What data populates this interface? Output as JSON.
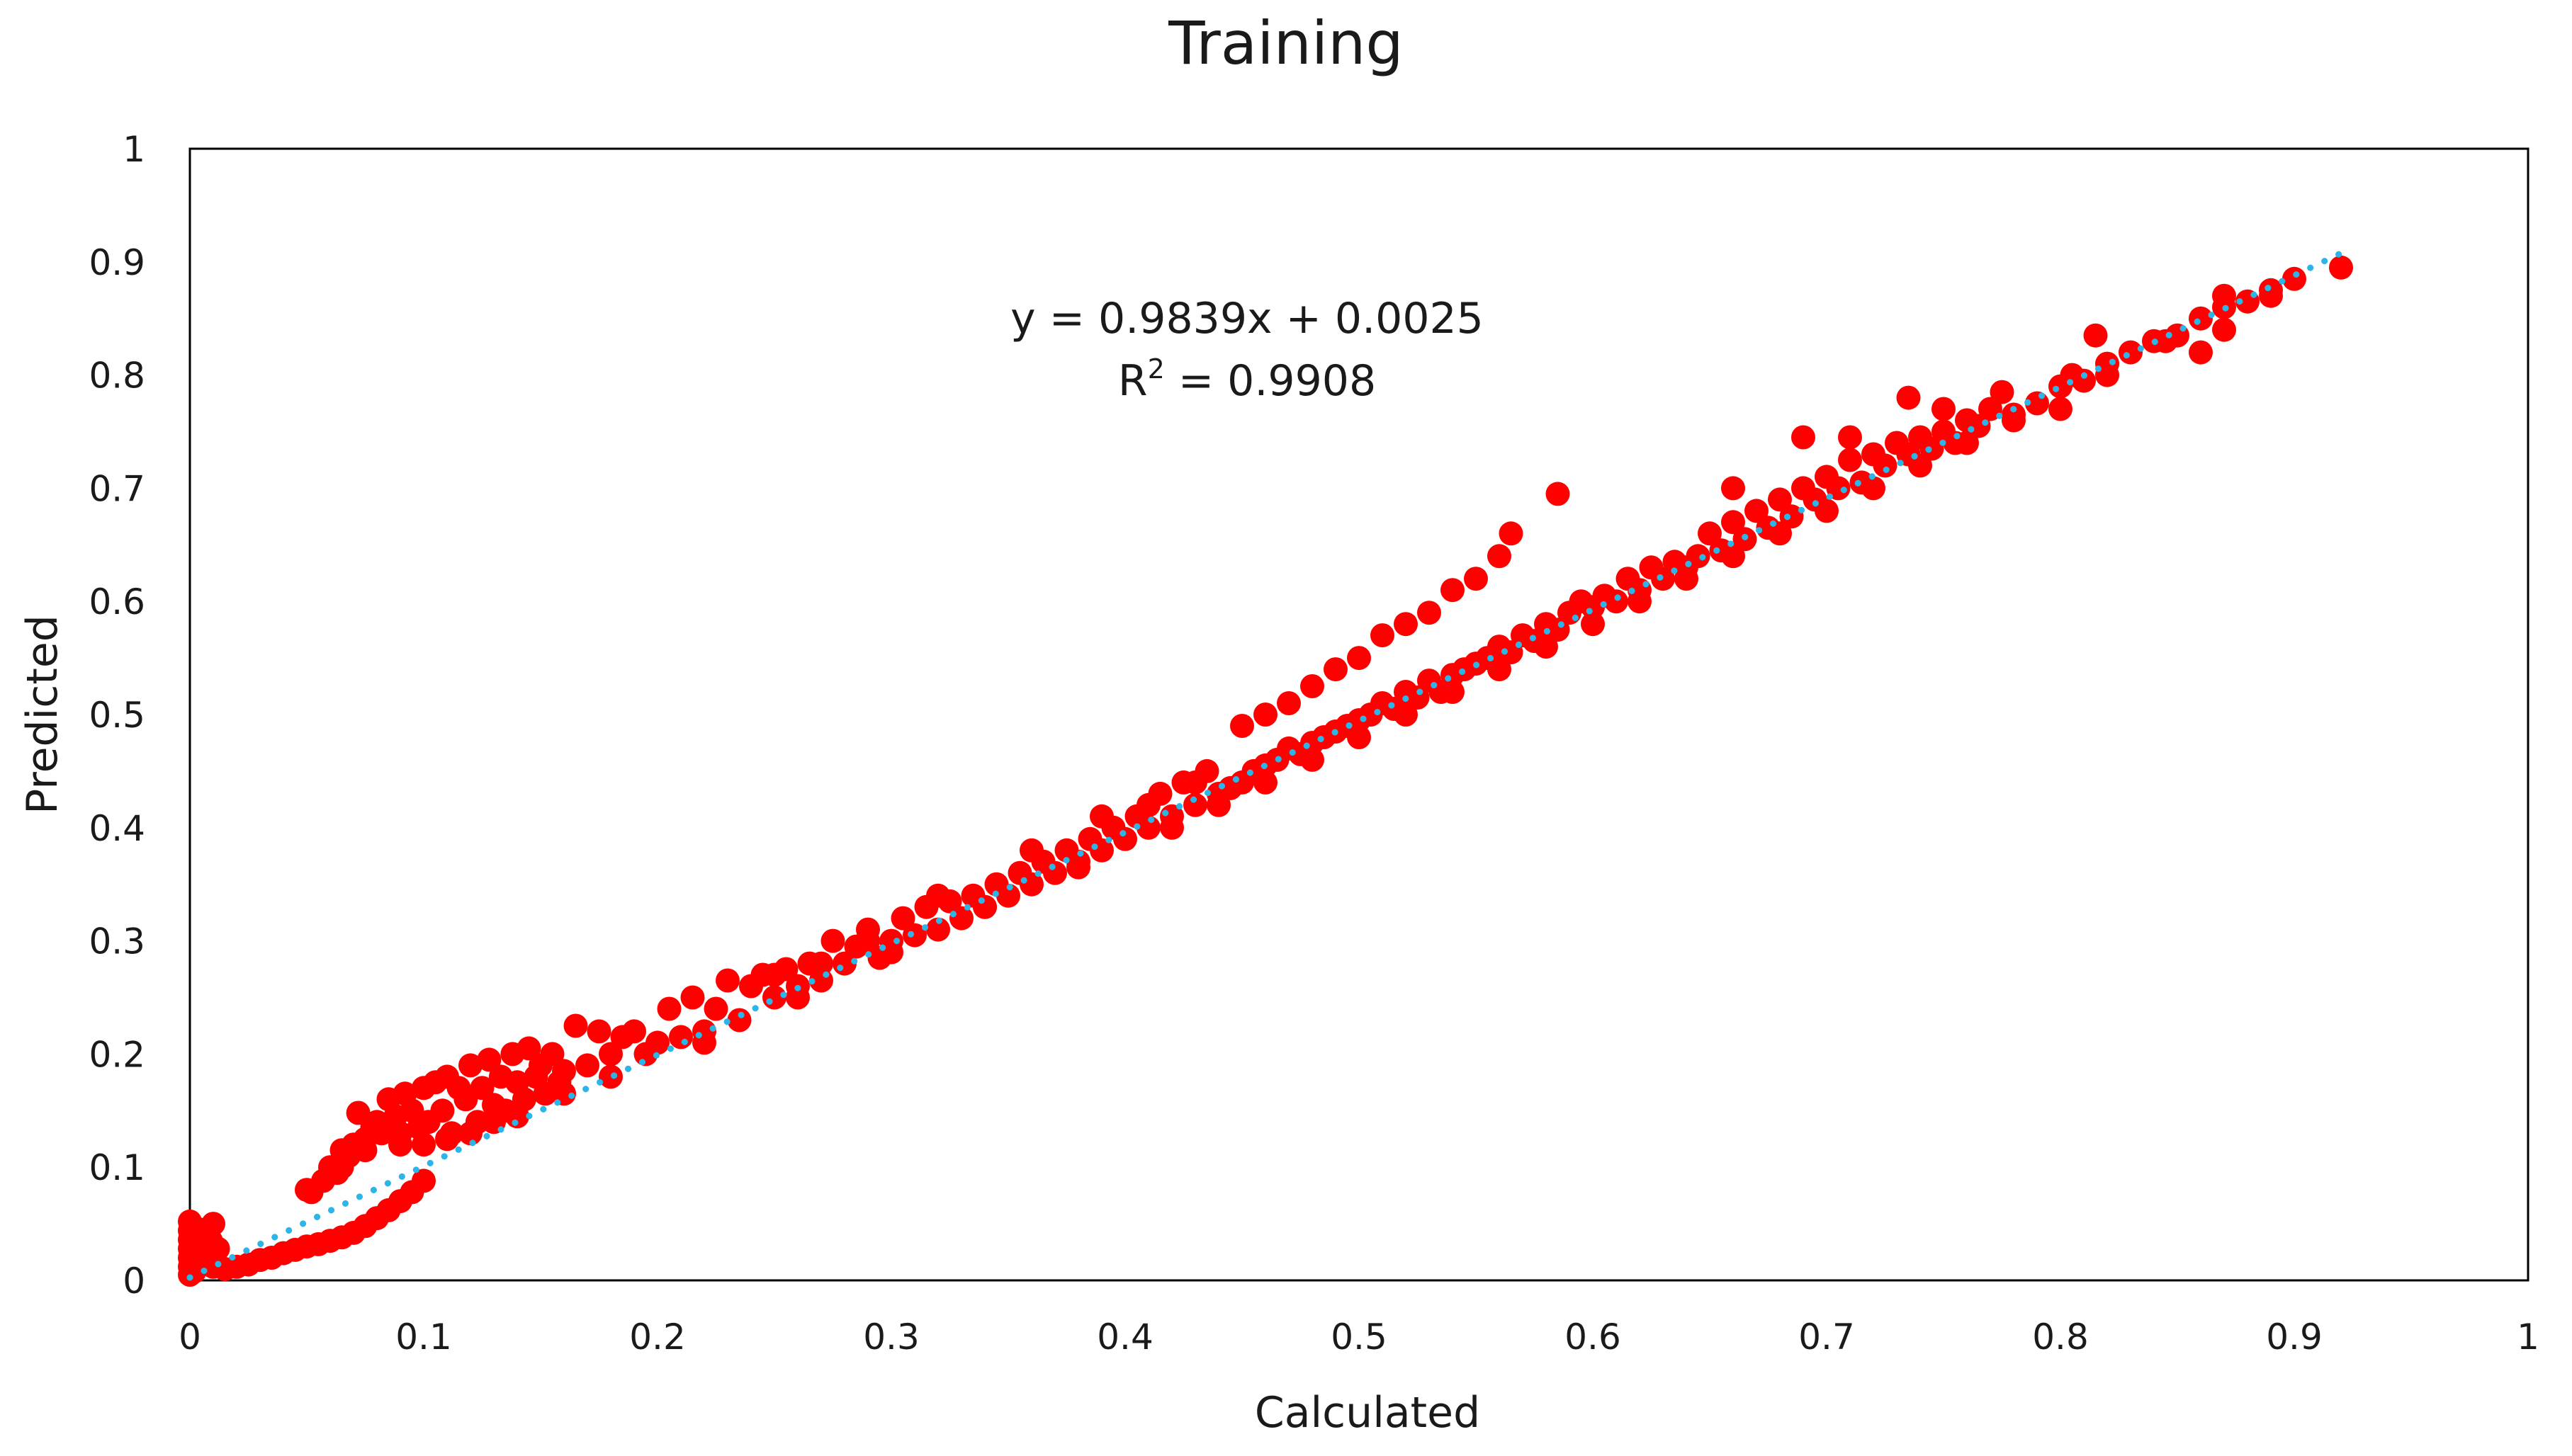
{
  "chart_data": {
    "type": "scatter",
    "title": "Training",
    "xlabel": "Calculated",
    "ylabel": "Predicted",
    "xlim": [
      0,
      1
    ],
    "ylim": [
      0,
      1
    ],
    "xticks": [
      "0",
      "0.1",
      "0.2",
      "0.3",
      "0.4",
      "0.5",
      "0.6",
      "0.7",
      "0.8",
      "0.9",
      "1"
    ],
    "yticks": [
      "0",
      "0.1",
      "0.2",
      "0.3",
      "0.4",
      "0.5",
      "0.6",
      "0.7",
      "0.8",
      "0.9",
      "1"
    ],
    "grid": false,
    "legend": "none",
    "marker_color": "#ff0000",
    "trendline": {
      "type": "linear",
      "slope": 0.9839,
      "intercept": 0.0025,
      "style": "dotted",
      "color": "#2eb5e8",
      "x_range": [
        0,
        0.92
      ]
    },
    "annotation": {
      "equation": "y = 0.9839x + 0.0025",
      "r2_label": "R",
      "r2_sup": "2",
      "r2_value": " = 0.9908"
    },
    "points": [
      [
        0,
        0.005
      ],
      [
        0,
        0.012
      ],
      [
        0,
        0.02
      ],
      [
        0,
        0.028
      ],
      [
        0,
        0.036
      ],
      [
        0,
        0.044
      ],
      [
        0,
        0.052
      ],
      [
        0.002,
        0.008
      ],
      [
        0.003,
        0.03
      ],
      [
        0.004,
        0.045
      ],
      [
        0.005,
        0.018
      ],
      [
        0.006,
        0.04
      ],
      [
        0.008,
        0.025
      ],
      [
        0.009,
        0.035
      ],
      [
        0.01,
        0.05
      ],
      [
        0.01,
        0.012
      ],
      [
        0.012,
        0.028
      ],
      [
        0.015,
        0.01
      ],
      [
        0.02,
        0.012
      ],
      [
        0.025,
        0.014
      ],
      [
        0.03,
        0.018
      ],
      [
        0.035,
        0.02
      ],
      [
        0.04,
        0.024
      ],
      [
        0.045,
        0.027
      ],
      [
        0.05,
        0.03
      ],
      [
        0.055,
        0.032
      ],
      [
        0.06,
        0.035
      ],
      [
        0.065,
        0.038
      ],
      [
        0.07,
        0.042
      ],
      [
        0.075,
        0.048
      ],
      [
        0.08,
        0.055
      ],
      [
        0.085,
        0.062
      ],
      [
        0.09,
        0.07
      ],
      [
        0.095,
        0.078
      ],
      [
        0.1,
        0.088
      ],
      [
        0.052,
        0.078
      ],
      [
        0.057,
        0.088
      ],
      [
        0.06,
        0.1
      ],
      [
        0.063,
        0.095
      ],
      [
        0.065,
        0.115
      ],
      [
        0.068,
        0.11
      ],
      [
        0.07,
        0.12
      ],
      [
        0.072,
        0.148
      ],
      [
        0.075,
        0.125
      ],
      [
        0.078,
        0.135
      ],
      [
        0.08,
        0.14
      ],
      [
        0.082,
        0.13
      ],
      [
        0.085,
        0.16
      ],
      [
        0.088,
        0.145
      ],
      [
        0.09,
        0.13
      ],
      [
        0.092,
        0.165
      ],
      [
        0.095,
        0.15
      ],
      [
        0.098,
        0.135
      ],
      [
        0.1,
        0.17
      ],
      [
        0.102,
        0.14
      ],
      [
        0.105,
        0.175
      ],
      [
        0.108,
        0.15
      ],
      [
        0.11,
        0.18
      ],
      [
        0.112,
        0.13
      ],
      [
        0.115,
        0.17
      ],
      [
        0.118,
        0.16
      ],
      [
        0.12,
        0.19
      ],
      [
        0.123,
        0.14
      ],
      [
        0.125,
        0.17
      ],
      [
        0.128,
        0.195
      ],
      [
        0.13,
        0.155
      ],
      [
        0.133,
        0.18
      ],
      [
        0.135,
        0.15
      ],
      [
        0.138,
        0.2
      ],
      [
        0.14,
        0.175
      ],
      [
        0.143,
        0.16
      ],
      [
        0.145,
        0.205
      ],
      [
        0.148,
        0.18
      ],
      [
        0.15,
        0.19
      ],
      [
        0.152,
        0.165
      ],
      [
        0.155,
        0.2
      ],
      [
        0.158,
        0.175
      ],
      [
        0.16,
        0.185
      ],
      [
        0.165,
        0.225
      ],
      [
        0.17,
        0.19
      ],
      [
        0.175,
        0.22
      ],
      [
        0.18,
        0.2
      ],
      [
        0.185,
        0.215
      ],
      [
        0.19,
        0.22
      ],
      [
        0.195,
        0.2
      ],
      [
        0.2,
        0.21
      ],
      [
        0.205,
        0.24
      ],
      [
        0.21,
        0.215
      ],
      [
        0.215,
        0.25
      ],
      [
        0.22,
        0.22
      ],
      [
        0.225,
        0.24
      ],
      [
        0.23,
        0.265
      ],
      [
        0.235,
        0.23
      ],
      [
        0.24,
        0.26
      ],
      [
        0.245,
        0.27
      ],
      [
        0.25,
        0.25
      ],
      [
        0.255,
        0.275
      ],
      [
        0.26,
        0.26
      ],
      [
        0.265,
        0.28
      ],
      [
        0.27,
        0.265
      ],
      [
        0.275,
        0.3
      ],
      [
        0.28,
        0.28
      ],
      [
        0.285,
        0.295
      ],
      [
        0.29,
        0.31
      ],
      [
        0.295,
        0.285
      ],
      [
        0.3,
        0.3
      ],
      [
        0.305,
        0.32
      ],
      [
        0.31,
        0.305
      ],
      [
        0.315,
        0.33
      ],
      [
        0.32,
        0.31
      ],
      [
        0.325,
        0.335
      ],
      [
        0.33,
        0.32
      ],
      [
        0.335,
        0.34
      ],
      [
        0.34,
        0.33
      ],
      [
        0.345,
        0.35
      ],
      [
        0.35,
        0.34
      ],
      [
        0.355,
        0.36
      ],
      [
        0.36,
        0.35
      ],
      [
        0.365,
        0.37
      ],
      [
        0.37,
        0.36
      ],
      [
        0.375,
        0.38
      ],
      [
        0.38,
        0.37
      ],
      [
        0.385,
        0.39
      ],
      [
        0.39,
        0.38
      ],
      [
        0.395,
        0.4
      ],
      [
        0.4,
        0.39
      ],
      [
        0.405,
        0.41
      ],
      [
        0.41,
        0.4
      ],
      [
        0.415,
        0.43
      ],
      [
        0.42,
        0.41
      ],
      [
        0.425,
        0.44
      ],
      [
        0.43,
        0.42
      ],
      [
        0.435,
        0.45
      ],
      [
        0.44,
        0.43
      ],
      [
        0.445,
        0.435
      ],
      [
        0.45,
        0.44
      ],
      [
        0.455,
        0.45
      ],
      [
        0.46,
        0.455
      ],
      [
        0.465,
        0.46
      ],
      [
        0.47,
        0.47
      ],
      [
        0.475,
        0.465
      ],
      [
        0.48,
        0.475
      ],
      [
        0.485,
        0.48
      ],
      [
        0.49,
        0.485
      ],
      [
        0.495,
        0.49
      ],
      [
        0.5,
        0.495
      ],
      [
        0.505,
        0.5
      ],
      [
        0.51,
        0.51
      ],
      [
        0.515,
        0.505
      ],
      [
        0.52,
        0.52
      ],
      [
        0.525,
        0.515
      ],
      [
        0.53,
        0.53
      ],
      [
        0.535,
        0.52
      ],
      [
        0.54,
        0.535
      ],
      [
        0.545,
        0.54
      ],
      [
        0.55,
        0.545
      ],
      [
        0.555,
        0.55
      ],
      [
        0.56,
        0.56
      ],
      [
        0.565,
        0.555
      ],
      [
        0.57,
        0.57
      ],
      [
        0.575,
        0.565
      ],
      [
        0.58,
        0.58
      ],
      [
        0.585,
        0.575
      ],
      [
        0.59,
        0.59
      ],
      [
        0.595,
        0.6
      ],
      [
        0.6,
        0.595
      ],
      [
        0.605,
        0.605
      ],
      [
        0.61,
        0.6
      ],
      [
        0.615,
        0.62
      ],
      [
        0.62,
        0.61
      ],
      [
        0.625,
        0.63
      ],
      [
        0.63,
        0.62
      ],
      [
        0.635,
        0.635
      ],
      [
        0.64,
        0.63
      ],
      [
        0.645,
        0.64
      ],
      [
        0.65,
        0.66
      ],
      [
        0.655,
        0.645
      ],
      [
        0.66,
        0.67
      ],
      [
        0.665,
        0.655
      ],
      [
        0.67,
        0.68
      ],
      [
        0.675,
        0.665
      ],
      [
        0.68,
        0.69
      ],
      [
        0.685,
        0.675
      ],
      [
        0.69,
        0.7
      ],
      [
        0.695,
        0.69
      ],
      [
        0.7,
        0.71
      ],
      [
        0.705,
        0.7
      ],
      [
        0.71,
        0.725
      ],
      [
        0.715,
        0.705
      ],
      [
        0.72,
        0.73
      ],
      [
        0.725,
        0.72
      ],
      [
        0.73,
        0.74
      ],
      [
        0.735,
        0.73
      ],
      [
        0.74,
        0.745
      ],
      [
        0.745,
        0.735
      ],
      [
        0.75,
        0.75
      ],
      [
        0.755,
        0.74
      ],
      [
        0.76,
        0.76
      ],
      [
        0.765,
        0.755
      ],
      [
        0.77,
        0.77
      ],
      [
        0.78,
        0.76
      ],
      [
        0.79,
        0.775
      ],
      [
        0.8,
        0.79
      ],
      [
        0.81,
        0.795
      ],
      [
        0.82,
        0.81
      ],
      [
        0.83,
        0.82
      ],
      [
        0.84,
        0.83
      ],
      [
        0.85,
        0.835
      ],
      [
        0.86,
        0.85
      ],
      [
        0.87,
        0.86
      ],
      [
        0.88,
        0.865
      ],
      [
        0.89,
        0.875
      ],
      [
        0.9,
        0.885
      ],
      [
        0.92,
        0.895
      ],
      [
        0.12,
        0.13
      ],
      [
        0.13,
        0.14
      ],
      [
        0.14,
        0.145
      ],
      [
        0.16,
        0.165
      ],
      [
        0.18,
        0.18
      ],
      [
        0.22,
        0.21
      ],
      [
        0.26,
        0.25
      ],
      [
        0.3,
        0.29
      ],
      [
        0.34,
        0.33
      ],
      [
        0.38,
        0.365
      ],
      [
        0.42,
        0.4
      ],
      [
        0.44,
        0.42
      ],
      [
        0.46,
        0.44
      ],
      [
        0.48,
        0.46
      ],
      [
        0.5,
        0.48
      ],
      [
        0.52,
        0.5
      ],
      [
        0.54,
        0.52
      ],
      [
        0.56,
        0.54
      ],
      [
        0.58,
        0.56
      ],
      [
        0.6,
        0.58
      ],
      [
        0.62,
        0.6
      ],
      [
        0.64,
        0.62
      ],
      [
        0.66,
        0.64
      ],
      [
        0.68,
        0.66
      ],
      [
        0.7,
        0.68
      ],
      [
        0.72,
        0.7
      ],
      [
        0.74,
        0.72
      ],
      [
        0.76,
        0.74
      ],
      [
        0.78,
        0.765
      ],
      [
        0.8,
        0.77
      ],
      [
        0.82,
        0.8
      ],
      [
        0.86,
        0.82
      ],
      [
        0.87,
        0.84
      ],
      [
        0.89,
        0.87
      ],
      [
        0.45,
        0.49
      ],
      [
        0.46,
        0.5
      ],
      [
        0.47,
        0.51
      ],
      [
        0.48,
        0.525
      ],
      [
        0.49,
        0.54
      ],
      [
        0.5,
        0.55
      ],
      [
        0.51,
        0.57
      ],
      [
        0.52,
        0.58
      ],
      [
        0.53,
        0.59
      ],
      [
        0.54,
        0.61
      ],
      [
        0.55,
        0.62
      ],
      [
        0.56,
        0.64
      ],
      [
        0.565,
        0.66
      ],
      [
        0.585,
        0.695
      ],
      [
        0.66,
        0.7
      ],
      [
        0.69,
        0.745
      ],
      [
        0.71,
        0.745
      ],
      [
        0.735,
        0.78
      ],
      [
        0.75,
        0.77
      ],
      [
        0.775,
        0.785
      ],
      [
        0.805,
        0.8
      ],
      [
        0.815,
        0.835
      ],
      [
        0.845,
        0.83
      ],
      [
        0.87,
        0.87
      ],
      [
        0.05,
        0.08
      ],
      [
        0.065,
        0.1
      ],
      [
        0.075,
        0.115
      ],
      [
        0.09,
        0.12
      ],
      [
        0.1,
        0.12
      ],
      [
        0.11,
        0.125
      ],
      [
        0.25,
        0.27
      ],
      [
        0.27,
        0.28
      ],
      [
        0.29,
        0.3
      ],
      [
        0.32,
        0.34
      ],
      [
        0.36,
        0.38
      ],
      [
        0.39,
        0.41
      ],
      [
        0.41,
        0.42
      ],
      [
        0.43,
        0.44
      ]
    ]
  }
}
